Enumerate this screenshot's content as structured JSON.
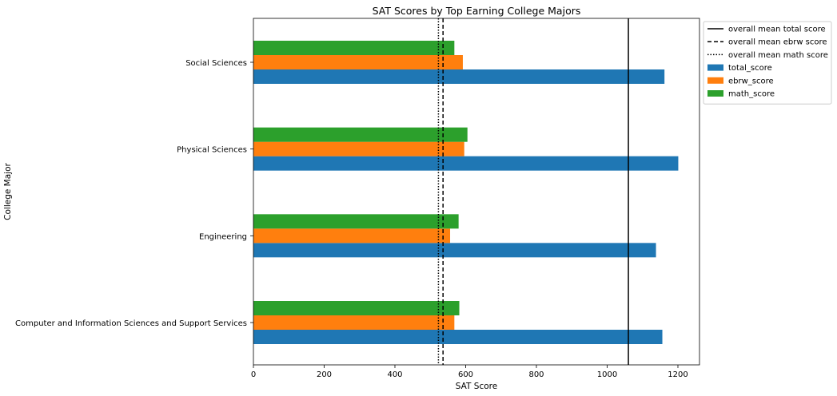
{
  "chart_data": {
    "type": "bar",
    "orientation": "horizontal",
    "title": "SAT Scores by Top Earning College Majors",
    "xlabel": "SAT Score",
    "ylabel": "College Major",
    "xlim": [
      0,
      1260
    ],
    "xticks": [
      0,
      200,
      400,
      600,
      800,
      1000,
      1200
    ],
    "grid": false,
    "legend_position": "outside-top-right",
    "categories": [
      "Computer and Information Sciences and Support Services",
      "Engineering",
      "Physical Sciences",
      "Social Sciences"
    ],
    "series": [
      {
        "name": "total_score",
        "color": "#1f77b4",
        "values": [
          1156,
          1138,
          1201,
          1162
        ]
      },
      {
        "name": "ebrw_score",
        "color": "#ff7f0e",
        "values": [
          568,
          556,
          596,
          592
        ]
      },
      {
        "name": "math_score",
        "color": "#2ca02c",
        "values": [
          582,
          580,
          605,
          568
        ]
      }
    ],
    "reference_lines": [
      {
        "name": "overall mean total score",
        "value": 1060,
        "style": "solid",
        "color": "#000000"
      },
      {
        "name": "overall mean ebrw score",
        "value": 536,
        "style": "dashed",
        "color": "#000000"
      },
      {
        "name": "overall mean math score",
        "value": 523,
        "style": "dotted",
        "color": "#000000"
      }
    ]
  }
}
